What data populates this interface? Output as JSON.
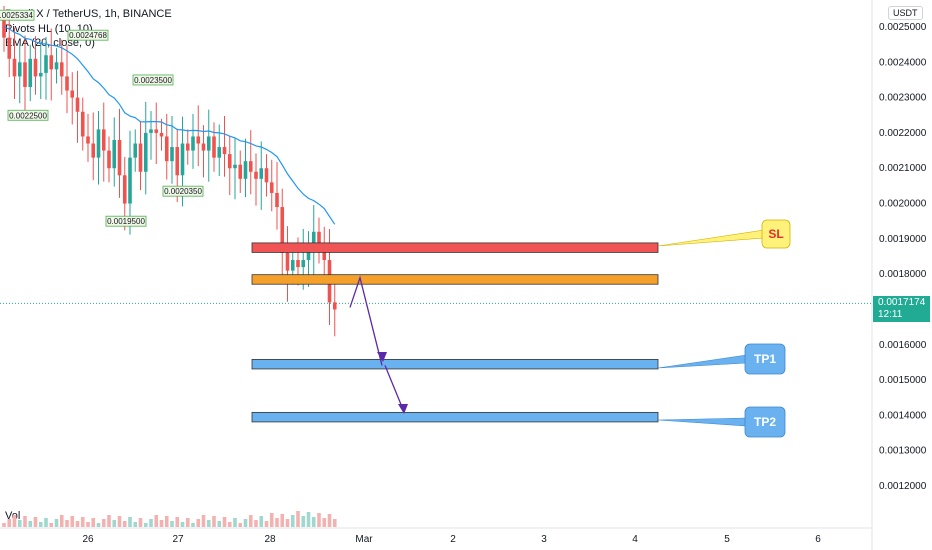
{
  "header": {
    "symbol_line": "Pundi X / TetherUS, 1h, BINANCE",
    "indicator1": "Pivots HL (10, 10)",
    "indicator2": "EMA (20, close, 0)"
  },
  "axis": {
    "currency": "USDT",
    "current_price": "0.0017174",
    "countdown": "12:11",
    "volume_label": "Vol"
  },
  "colors": {
    "up_candle": "#26a69a",
    "down_candle": "#ef5350",
    "ema": "#2196f3",
    "sl_zone": "#f05454",
    "entry_zone": "#f5a02a",
    "tp_zone": "#6ab1f0",
    "arrow": "#5b2aa8",
    "current_price_line": "#22ab94"
  },
  "chart_data": {
    "type": "candlestick",
    "y_ticks": [
      "0.0025000",
      "0.0024000",
      "0.0023000",
      "0.0022000",
      "0.0021000",
      "0.0020000",
      "0.0019000",
      "0.0018000",
      "0.0016000",
      "0.0015000",
      "0.0014000",
      "0.0013000",
      "0.0012000"
    ],
    "x_ticks": [
      "26",
      "27",
      "28",
      "Mar",
      "2",
      "3",
      "4",
      "5",
      "6"
    ],
    "ylim": [
      0.00115,
      0.00254
    ],
    "close_series": [
      0.00247,
      0.00241,
      0.00236,
      0.0024,
      0.00233,
      0.00241,
      0.00236,
      0.00237,
      0.00242,
      0.00238,
      0.0024,
      0.00236,
      0.00232,
      0.0023,
      0.00226,
      0.00219,
      0.00217,
      0.00213,
      0.00221,
      0.00215,
      0.0021,
      0.00218,
      0.00208,
      0.002,
      0.00213,
      0.00217,
      0.00209,
      0.0022,
      0.00221,
      0.0022,
      0.00219,
      0.00212,
      0.00216,
      0.00208,
      0.00217,
      0.00215,
      0.00219,
      0.00217,
      0.00215,
      0.00219,
      0.00213,
      0.00216,
      0.00214,
      0.0021,
      0.00211,
      0.00207,
      0.00212,
      0.00209,
      0.00207,
      0.0021,
      0.00206,
      0.00203,
      0.00199,
      0.00186,
      0.00181,
      0.00184,
      0.00182,
      0.00184,
      0.00187,
      0.00192,
      0.00187,
      0.00184,
      0.00172,
      0.0017
    ],
    "pivot_labels": [
      {
        "text": "0.0025334",
        "value": 0.0025334
      },
      {
        "text": "0.0024768",
        "value": 0.0024768
      },
      {
        "text": "0.0022500",
        "value": 0.00225
      },
      {
        "text": "0.0023500",
        "value": 0.00235
      },
      {
        "text": "0.0020350",
        "value": 0.002035
      },
      {
        "text": "0.0019500",
        "value": 0.00195
      }
    ],
    "zones": [
      {
        "name": "SL",
        "low": 0.00187,
        "high": 0.00188
      },
      {
        "name": "Entry",
        "low": 0.00178,
        "high": 0.00179
      },
      {
        "name": "TP1",
        "low": 0.00154,
        "high": 0.00155
      },
      {
        "name": "TP2",
        "low": 0.00139,
        "high": 0.0014
      }
    ],
    "callouts": [
      "SL",
      "TP1",
      "TP2"
    ],
    "current_price": 0.0017174
  }
}
